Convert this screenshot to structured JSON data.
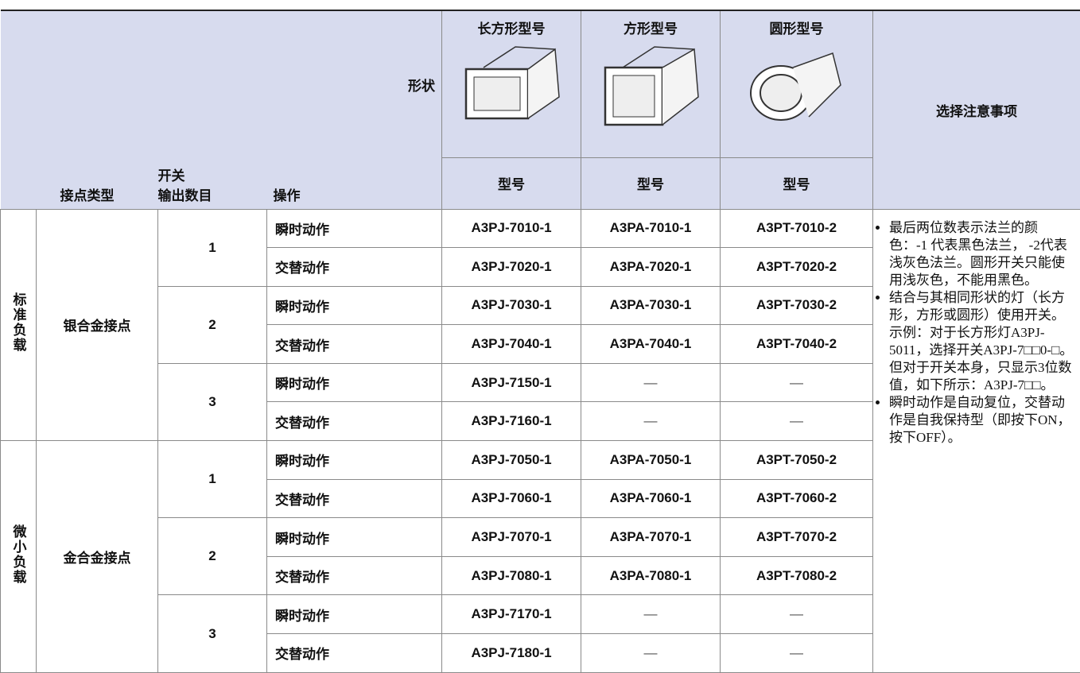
{
  "header": {
    "shape_label": "形状",
    "contact_type": "接点类型",
    "outputs_lines": [
      "开关",
      "输出数目"
    ],
    "operation": "操作",
    "columns": [
      {
        "name": "长方形型号",
        "model_label": "型号"
      },
      {
        "name": "方形型号",
        "model_label": "型号"
      },
      {
        "name": "圆形型号",
        "model_label": "型号"
      }
    ],
    "notes_title": "选择注意事项"
  },
  "groups": [
    {
      "load": "标准负载",
      "contact": "银合金接点",
      "outputs": [
        {
          "count": "1",
          "rows": [
            {
              "operation": "瞬时动作",
              "models": [
                "A3PJ-7010-1",
                "A3PA-7010-1",
                "A3PT-7010-2"
              ]
            },
            {
              "operation": "交替动作",
              "models": [
                "A3PJ-7020-1",
                "A3PA-7020-1",
                "A3PT-7020-2"
              ]
            }
          ]
        },
        {
          "count": "2",
          "rows": [
            {
              "operation": "瞬时动作",
              "models": [
                "A3PJ-7030-1",
                "A3PA-7030-1",
                "A3PT-7030-2"
              ]
            },
            {
              "operation": "交替动作",
              "models": [
                "A3PJ-7040-1",
                "A3PA-7040-1",
                "A3PT-7040-2"
              ]
            }
          ]
        },
        {
          "count": "3",
          "rows": [
            {
              "operation": "瞬时动作",
              "models": [
                "A3PJ-7150-1",
                "—",
                "—"
              ]
            },
            {
              "operation": "交替动作",
              "models": [
                "A3PJ-7160-1",
                "—",
                "—"
              ]
            }
          ]
        }
      ]
    },
    {
      "load": "微小负载",
      "contact": "金合金接点",
      "outputs": [
        {
          "count": "1",
          "rows": [
            {
              "operation": "瞬时动作",
              "models": [
                "A3PJ-7050-1",
                "A3PA-7050-1",
                "A3PT-7050-2"
              ]
            },
            {
              "operation": "交替动作",
              "models": [
                "A3PJ-7060-1",
                "A3PA-7060-1",
                "A3PT-7060-2"
              ]
            }
          ]
        },
        {
          "count": "2",
          "rows": [
            {
              "operation": "瞬时动作",
              "models": [
                "A3PJ-7070-1",
                "A3PA-7070-1",
                "A3PT-7070-2"
              ]
            },
            {
              "operation": "交替动作",
              "models": [
                "A3PJ-7080-1",
                "A3PA-7080-1",
                "A3PT-7080-2"
              ]
            }
          ]
        },
        {
          "count": "3",
          "rows": [
            {
              "operation": "瞬时动作",
              "models": [
                "A3PJ-7170-1",
                "—",
                "—"
              ]
            },
            {
              "operation": "交替动作",
              "models": [
                "A3PJ-7180-1",
                "—",
                "—"
              ]
            }
          ]
        }
      ]
    }
  ],
  "notes": [
    {
      "text": "最后两位数表示法兰的颜色：-1 代表黑色法兰， -2代表浅灰色法兰。圆形开关只能使用浅灰色，不能用黑色。"
    },
    {
      "text": "结合与其相同形状的灯（长方形，方形或圆形）使用开关。",
      "example": "示例：对于长方形灯A3PJ-5011，选择开关A3PJ-7□□0-□。但对于开关本身，只显示3位数值，如下所示：A3PJ-7□□。"
    },
    {
      "text": "瞬时动作是自动复位，交替动作是自我保持型（即按下ON，按下OFF）。"
    }
  ]
}
